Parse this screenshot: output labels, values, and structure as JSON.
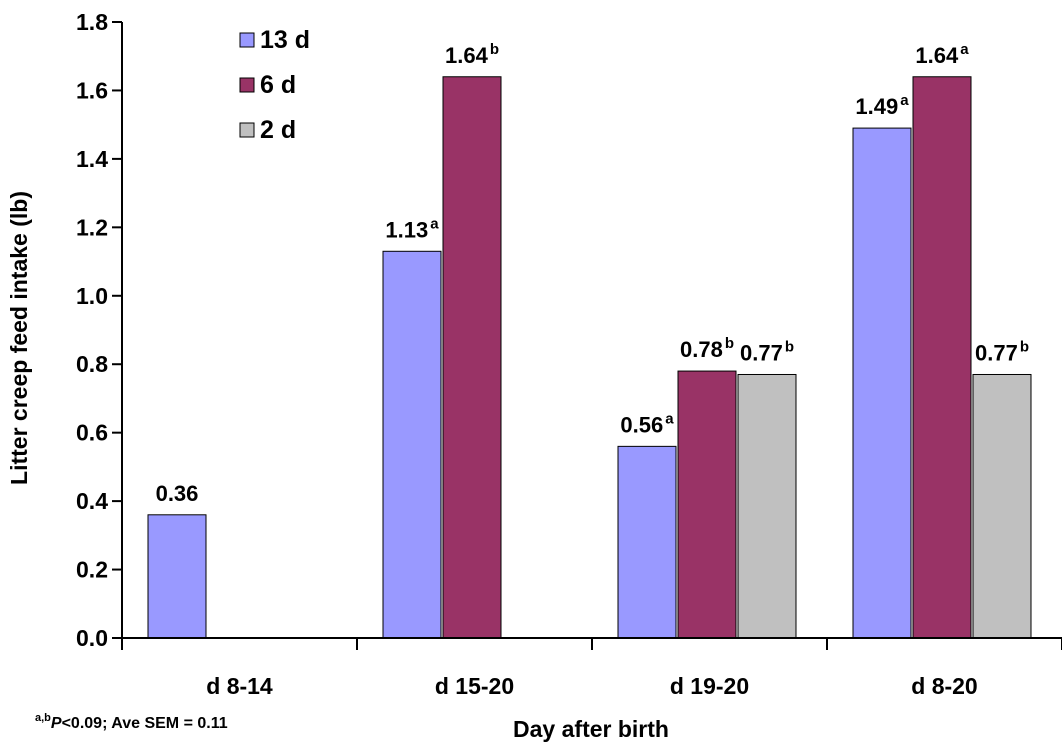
{
  "chart_data": {
    "type": "bar",
    "categories": [
      "d 8-14",
      "d 15-20",
      "d 19-20",
      "d 8-20"
    ],
    "series": [
      {
        "name": "13 d",
        "color": "#9999ff",
        "values": [
          0.36,
          1.13,
          0.56,
          1.49
        ],
        "labels": [
          "0.36",
          "1.13",
          "0.56",
          "1.49"
        ],
        "superscripts": [
          "",
          "a",
          "a",
          "a"
        ]
      },
      {
        "name": "6 d",
        "color": "#993366",
        "values": [
          null,
          1.64,
          0.78,
          1.64
        ],
        "labels": [
          "",
          "1.64",
          "0.78",
          "1.64"
        ],
        "superscripts": [
          "",
          "b",
          "b",
          "a"
        ]
      },
      {
        "name": "2 d",
        "color": "#c0c0c0",
        "values": [
          null,
          null,
          0.77,
          0.77
        ],
        "labels": [
          "",
          "",
          "0.77",
          "0.77"
        ],
        "superscripts": [
          "",
          "",
          "b",
          "b"
        ]
      }
    ],
    "ylabel": "Litter creep feed intake (lb)",
    "xlabel": "Day after birth",
    "ylim": [
      0,
      1.8
    ],
    "yticks": [
      "0.0",
      "0.2",
      "0.4",
      "0.6",
      "0.8",
      "1.0",
      "1.2",
      "1.4",
      "1.6",
      "1.8"
    ],
    "legend_position": "top-left",
    "grid": false
  },
  "footnote": {
    "superscript": "a,b",
    "p_symbol": "P",
    "text": "<0.09; Ave SEM = 0.11"
  }
}
